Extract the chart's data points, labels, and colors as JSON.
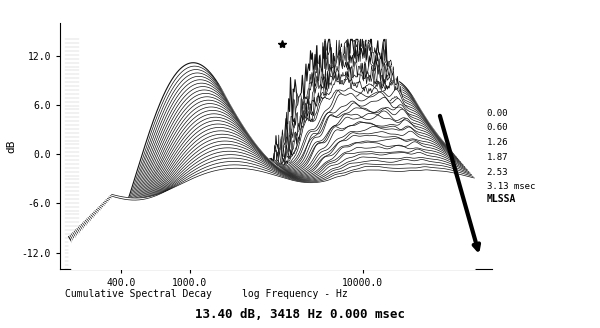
{
  "title": "13.40 dB, 3418 Hz 0.000 msec",
  "xlabel": "log Frequency - Hz",
  "ylabel": "dB",
  "x_label_left": "Cumulative Spectral Decay",
  "y_ticks": [
    -12.0,
    -6.0,
    0.0,
    6.0,
    12.0
  ],
  "y_tick_labels": [
    "-12.0",
    "-6.0",
    "0.0",
    "6.0",
    "12.0"
  ],
  "x_ticks_log": [
    400.0,
    1000.0,
    10000.0
  ],
  "x_tick_labels": [
    "400.0",
    "1000.0",
    "10000.0"
  ],
  "time_labels": [
    "0.00",
    "0.60",
    "1.26",
    "1.87",
    "2.53",
    "3.13 msec"
  ],
  "mlssa_label": "MLSSA",
  "freq_min": 200,
  "freq_max": 25000,
  "n_slices": 32,
  "background_color": "#e8e8e8",
  "line_color": "#111111",
  "face_color": "#ffffff"
}
